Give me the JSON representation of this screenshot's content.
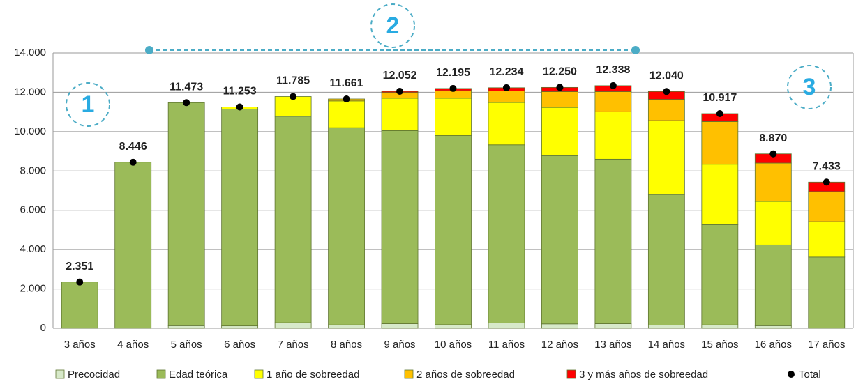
{
  "chart_data": {
    "type": "stacked_bar",
    "categories": [
      "3 años",
      "4 años",
      "5 años",
      "6 años",
      "7 años",
      "8 años",
      "9 años",
      "10 años",
      "11 años",
      "12 años",
      "13 años",
      "14 años",
      "15 años",
      "16 años",
      "17 años"
    ],
    "series": [
      {
        "name": "Precocidad",
        "color": "#d7e9c9",
        "values": [
          0,
          0,
          130,
          120,
          280,
          170,
          230,
          180,
          270,
          220,
          230,
          160,
          170,
          130,
          0
        ]
      },
      {
        "name": "Edad teórica",
        "color": "#9bbb59",
        "values": [
          2351,
          8446,
          11343,
          11030,
          10500,
          10030,
          9820,
          9620,
          9060,
          8560,
          8370,
          6640,
          5100,
          4110,
          3620
        ]
      },
      {
        "name": "1 año de sobreedad",
        "color": "#ffff00",
        "values": [
          0,
          0,
          0,
          103,
          1005,
          1360,
          1650,
          1900,
          2150,
          2450,
          2410,
          3760,
          3070,
          2210,
          1800
        ]
      },
      {
        "name": "2 años de sobreedad",
        "color": "#ffc000",
        "values": [
          0,
          0,
          0,
          0,
          0,
          101,
          290,
          380,
          590,
          800,
          1020,
          1080,
          2170,
          1950,
          1530
        ]
      },
      {
        "name": "3 y más años de sobreedad",
        "color": "#ff0000",
        "values": [
          0,
          0,
          0,
          0,
          0,
          0,
          62,
          115,
          164,
          220,
          308,
          400,
          407,
          470,
          483
        ]
      }
    ],
    "total": {
      "name": "Total",
      "color": "#000000",
      "values": [
        2351,
        8446,
        11473,
        11253,
        11785,
        11661,
        12052,
        12195,
        12234,
        12250,
        12338,
        12040,
        10917,
        8870,
        7433
      ],
      "value_labels": [
        "2.351",
        "8.446",
        "11.473",
        "11.253",
        "11.785",
        "11.661",
        "12.052",
        "12.195",
        "12.234",
        "12.250",
        "12.338",
        "12.040",
        "10.917",
        "8.870",
        "7.433"
      ]
    },
    "ylim": [
      0,
      14000
    ],
    "yticks": [
      {
        "value": 0,
        "label": "0"
      },
      {
        "value": 2000,
        "label": "2.000"
      },
      {
        "value": 4000,
        "label": "4.000"
      },
      {
        "value": 6000,
        "label": "6.000"
      },
      {
        "value": 8000,
        "label": "8.000"
      },
      {
        "value": 10000,
        "label": "10.000"
      },
      {
        "value": 12000,
        "label": "12.000"
      },
      {
        "value": 14000,
        "label": "14.000"
      }
    ],
    "grid": true,
    "annotations": [
      "1",
      "2",
      "3"
    ]
  }
}
